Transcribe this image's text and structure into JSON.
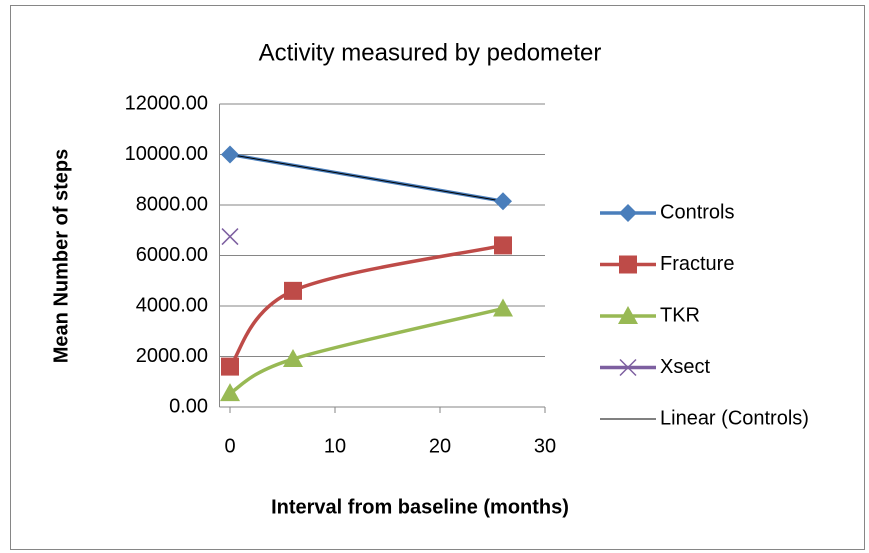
{
  "chart_data": {
    "type": "line",
    "title": "Activity measured by pedometer",
    "xlabel": "Interval from baseline (months)",
    "ylabel": "Mean Number of steps",
    "xlim": [
      -1,
      30
    ],
    "xticks": [
      0,
      10,
      20,
      30
    ],
    "ylim": [
      0,
      12000
    ],
    "yticks": [
      {
        "value": 0,
        "label": "0.00"
      },
      {
        "value": 2000,
        "label": "2000.00"
      },
      {
        "value": 4000,
        "label": "4000.00"
      },
      {
        "value": 6000,
        "label": "6000.00"
      },
      {
        "value": 8000,
        "label": "8000.00"
      },
      {
        "value": 10000,
        "label": "10000.00"
      },
      {
        "value": 12000,
        "label": "12000.00"
      }
    ],
    "grid": true,
    "legend": "right",
    "series": [
      {
        "name": "Controls",
        "color": "#4a7ebb",
        "marker": "diamond",
        "smooth": false,
        "x": [
          0,
          26
        ],
        "values": [
          10000,
          8150
        ]
      },
      {
        "name": "Fracture",
        "color": "#be4b48",
        "marker": "square",
        "smooth": true,
        "x": [
          0,
          6,
          26
        ],
        "values": [
          1600,
          4600,
          6400
        ]
      },
      {
        "name": "TKR",
        "color": "#98b954",
        "marker": "triangle",
        "smooth": true,
        "x": [
          0,
          6,
          26
        ],
        "values": [
          550,
          1900,
          3900
        ]
      },
      {
        "name": "Xsect",
        "color": "#7d5fa0",
        "marker": "x",
        "smooth": false,
        "x": [
          0
        ],
        "values": [
          6750
        ]
      },
      {
        "name": "Linear (Controls)",
        "color": "#000000",
        "marker": "none",
        "smooth": false,
        "x": [
          0,
          26
        ],
        "values": [
          10000,
          8150
        ]
      }
    ]
  }
}
